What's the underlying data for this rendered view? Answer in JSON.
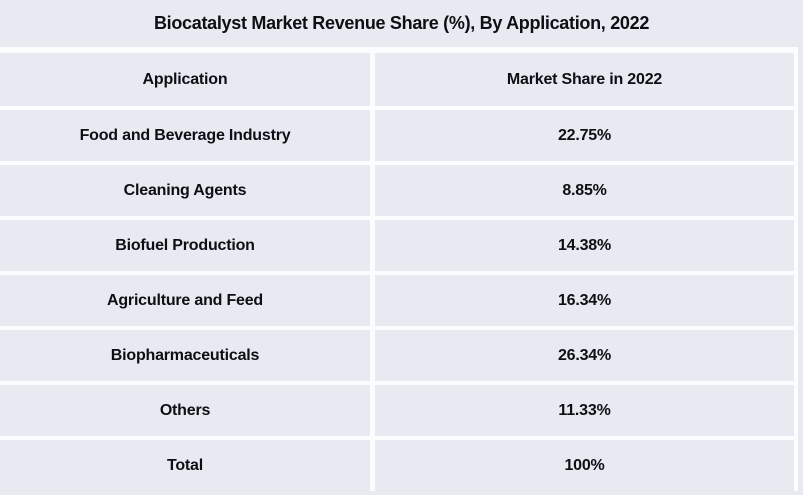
{
  "chart_data": {
    "type": "table",
    "title": "Biocatalyst Market Revenue Share (%), By Application, 2022",
    "columns": [
      "Application",
      "Market Share in 2022"
    ],
    "categories": [
      "Food and Beverage Industry",
      "Cleaning Agents",
      "Biofuel Production",
      "Agriculture and Feed",
      "Biopharmaceuticals",
      "Others",
      "Total"
    ],
    "values": [
      22.75,
      8.85,
      14.38,
      16.34,
      26.34,
      11.33,
      100
    ],
    "unit": "%"
  },
  "title": "Biocatalyst Market Revenue Share (%), By Application, 2022",
  "header": {
    "application": "Application",
    "share": "Market Share in 2022"
  },
  "rows": [
    {
      "application": "Food and Beverage Industry",
      "share": "22.75%"
    },
    {
      "application": "Cleaning Agents",
      "share": "8.85%"
    },
    {
      "application": "Biofuel Production",
      "share": "14.38%"
    },
    {
      "application": "Agriculture and Feed",
      "share": "16.34%"
    },
    {
      "application": "Biopharmaceuticals",
      "share": "26.34%"
    },
    {
      "application": "Others",
      "share": "11.33%"
    },
    {
      "application": "Total",
      "share": "100%"
    }
  ],
  "colors": {
    "background": "#e8eaf2",
    "separator": "#fbfcfe",
    "text": "#0e0e14"
  }
}
